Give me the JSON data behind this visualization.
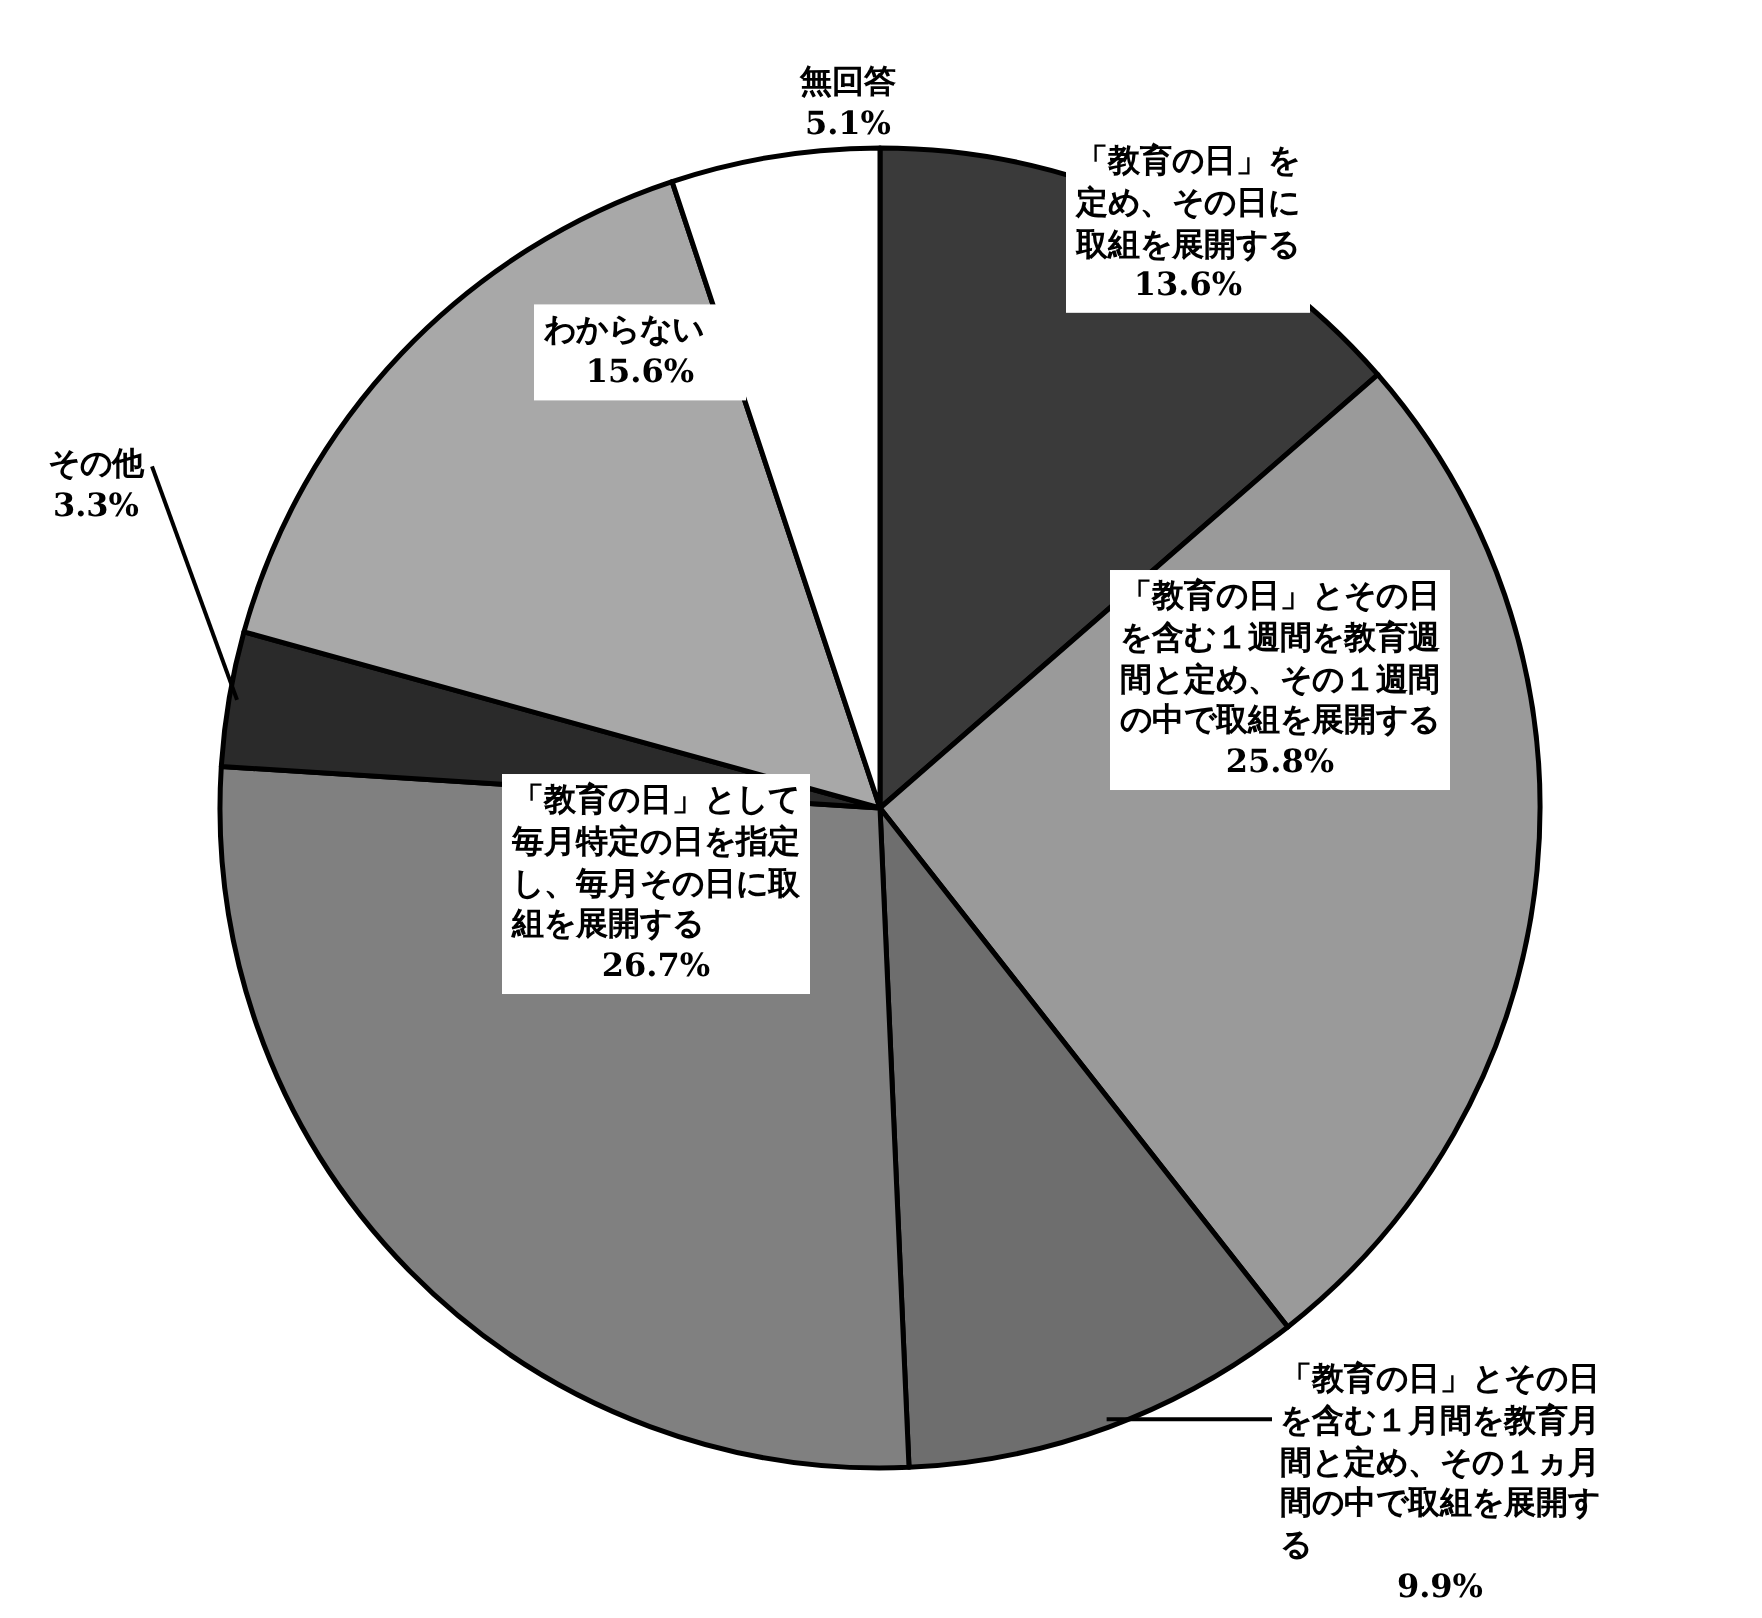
{
  "chart_data": {
    "type": "pie",
    "categories": [
      "「教育の日」を定め、その日に取組を展開する",
      "「教育の日」とその日を含む１週間を教育週間と定め、その１週間の中で取組を展開する",
      "「教育の日」とその日を含む１月間を教育月間と定め、その１ヵ月間の中で取組を展開する",
      "「教育の日」として毎月特定の日を指定し、毎月その日に取組を展開する",
      "その他",
      "わからない",
      "無回答"
    ],
    "values": [
      13.6,
      25.8,
      9.9,
      26.7,
      3.3,
      15.6,
      5.1
    ],
    "colors": [
      "#3a3a3a",
      "#9a9a9a",
      "#6e6e6e",
      "#808080",
      "#2a2a2a",
      "#a8a8a8",
      "#ffffff"
    ],
    "value_labels": [
      "13.6%",
      "25.8%",
      "9.9%",
      "26.7%",
      "3.3%",
      "15.6%",
      "5.1%"
    ]
  }
}
